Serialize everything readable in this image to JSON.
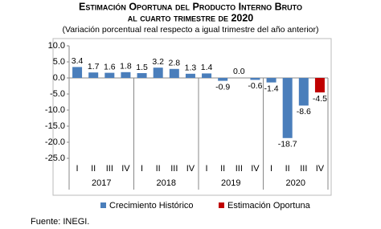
{
  "chart_data": {
    "type": "bar",
    "title": "Estimación Oportuna del Producto Interno Bruto",
    "title_line2": "al cuarto trimestre de 2020",
    "subtitle": "(Variación porcentual real respecto a igual trimestre del año anterior)",
    "categories": [
      "I",
      "II",
      "III",
      "IV",
      "I",
      "II",
      "III",
      "IV",
      "I",
      "II",
      "III",
      "IV",
      "I",
      "II",
      "III",
      "IV"
    ],
    "groups": [
      "2017",
      "2018",
      "2019",
      "2020"
    ],
    "series": [
      {
        "name": "Crecimiento Histórico",
        "color": "#4a7ebb",
        "values": [
          3.4,
          1.7,
          1.6,
          1.8,
          1.5,
          3.2,
          2.8,
          1.3,
          1.4,
          -0.9,
          0.0,
          -0.6,
          -1.4,
          -18.7,
          -8.6,
          null
        ],
        "value_labels": [
          "3.4",
          "1.7",
          "1.6",
          "1.8",
          "1.5",
          "3.2",
          "2.8",
          "1.3",
          "1.4",
          "-0.9",
          "0.0",
          "-0.6",
          "-1.4",
          "-18.7",
          "-8.6",
          null
        ]
      },
      {
        "name": "Estimación Oportuna",
        "color": "#c00000",
        "values": [
          null,
          null,
          null,
          null,
          null,
          null,
          null,
          null,
          null,
          null,
          null,
          null,
          null,
          null,
          null,
          -4.5
        ],
        "value_labels": [
          null,
          null,
          null,
          null,
          null,
          null,
          null,
          null,
          null,
          null,
          null,
          null,
          null,
          null,
          null,
          "-4.5"
        ]
      }
    ],
    "ylim": [
      -25,
      10
    ],
    "yticks": [
      {
        "value": 10,
        "label": "10.0"
      },
      {
        "value": 5,
        "label": "5.0"
      },
      {
        "value": 0,
        "label": "0.0"
      },
      {
        "value": -5,
        "label": "-5.0"
      },
      {
        "value": -10,
        "label": "-10.0"
      },
      {
        "value": -15,
        "label": "-15.0"
      },
      {
        "value": -20,
        "label": "-20.0"
      },
      {
        "value": -25,
        "label": "-25.0"
      }
    ],
    "source": "Fuente: INEGI."
  }
}
